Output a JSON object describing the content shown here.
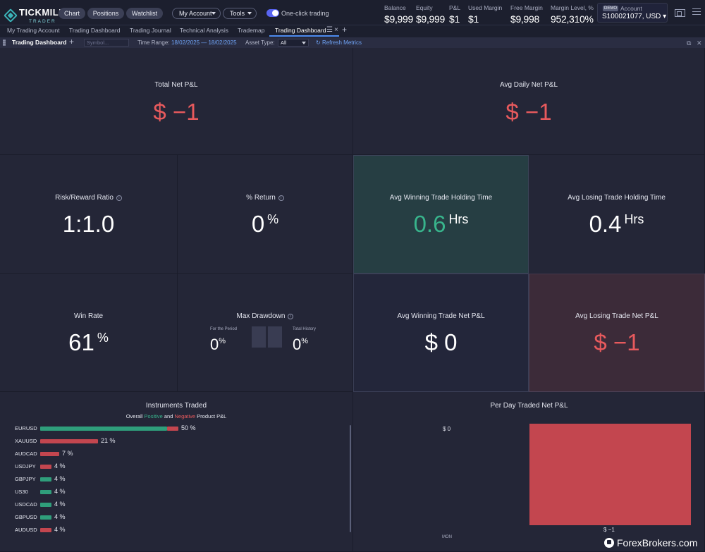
{
  "header": {
    "logo_text": "TICKMILL",
    "logo_sub": "TRADER",
    "nav_buttons": [
      "Chart",
      "Positions",
      "Watchlist"
    ],
    "my_account_label": "My Account",
    "tools_label": "Tools",
    "one_click_label": "One-click trading",
    "one_click_enabled": true,
    "metrics": [
      {
        "label": "Balance",
        "value": "$9,999"
      },
      {
        "label": "Equity",
        "value": "$9,999"
      },
      {
        "label": "P&L",
        "value": "$1"
      },
      {
        "label": "Used Margin",
        "value": "$1"
      },
      {
        "label": "Free Margin",
        "value": "$9,998"
      },
      {
        "label": "Margin Level, %",
        "value": "952,310%"
      }
    ],
    "account": {
      "badge": "DEMO",
      "label": "Account",
      "value": "S100021077, USD"
    }
  },
  "tabs": {
    "items": [
      "My Trading Account",
      "Trading Dashboard",
      "Trading Journal",
      "Technical Analysis",
      "Trademap",
      "Trading Dashboard"
    ],
    "active_index": 5
  },
  "toolbar": {
    "title": "Trading Dashboard",
    "symbol_placeholder": "Symbol...",
    "time_range_label": "Time Range:",
    "time_range_value": "18/02/2025 — 18/02/2025",
    "asset_type_label": "Asset Type:",
    "asset_type_value": "All",
    "refresh_label": "Refresh Metrics"
  },
  "dashboard": {
    "total_net_pl": {
      "title": "Total Net P&L",
      "value": "$ −1"
    },
    "avg_daily_net_pl": {
      "title": "Avg Daily Net P&L",
      "value": "$ −1"
    },
    "risk_reward": {
      "title": "Risk/Reward Ratio",
      "value": "1:1.0"
    },
    "pct_return": {
      "title": "% Return",
      "value": "0",
      "unit": "%"
    },
    "avg_win_hold": {
      "title": "Avg Winning Trade Holding Time",
      "value": "0.6",
      "unit": "Hrs"
    },
    "avg_loss_hold": {
      "title": "Avg Losing Trade Holding Time",
      "value": "0.4",
      "unit": "Hrs"
    },
    "win_rate": {
      "title": "Win Rate",
      "value": "61",
      "unit": "%"
    },
    "max_drawdown": {
      "title": "Max Drawdown",
      "period_label": "For the Period",
      "period_value": "0",
      "history_label": "Total History",
      "history_value": "0",
      "unit": "%"
    },
    "avg_win_net_pl": {
      "title": "Avg Winning Trade Net P&L",
      "value": "$ 0"
    },
    "avg_loss_net_pl": {
      "title": "Avg Losing Trade Net P&L",
      "value": "$ −1"
    }
  },
  "instruments": {
    "title": "Instruments Traded",
    "subtitle_prefix": "Overall ",
    "subtitle_positive": "Positive",
    "subtitle_and": " and ",
    "subtitle_negative": "Negative",
    "subtitle_suffix": " Product P&L",
    "items": [
      {
        "name": "EURUSD",
        "pct_label": "50 %",
        "share": 50,
        "positive_share": 0.92
      },
      {
        "name": "XAUUSD",
        "pct_label": "21 %",
        "share": 21,
        "positive_share": 0
      },
      {
        "name": "AUDCAD",
        "pct_label": "7 %",
        "share": 7,
        "positive_share": 0
      },
      {
        "name": "USDJPY",
        "pct_label": "4 %",
        "share": 4,
        "positive_share": 0
      },
      {
        "name": "GBPJPY",
        "pct_label": "4 %",
        "share": 4,
        "positive_share": 1
      },
      {
        "name": "US30",
        "pct_label": "4 %",
        "share": 4,
        "positive_share": 1
      },
      {
        "name": "USDCAD",
        "pct_label": "4 %",
        "share": 4,
        "positive_share": 1
      },
      {
        "name": "GBPUSD",
        "pct_label": "4 %",
        "share": 4,
        "positive_share": 1
      },
      {
        "name": "AUDUSD",
        "pct_label": "4 %",
        "share": 4,
        "positive_share": 0
      }
    ]
  },
  "per_day": {
    "title": "Per Day Traded Net P&L",
    "y_label": "$ 0",
    "x_label": "MON",
    "value_label": "$ −1"
  },
  "colors": {
    "positive": "#2f9e7b",
    "negative": "#c3464f",
    "accent": "#4e8cf0"
  },
  "watermark": "ForexBrokers.com"
}
